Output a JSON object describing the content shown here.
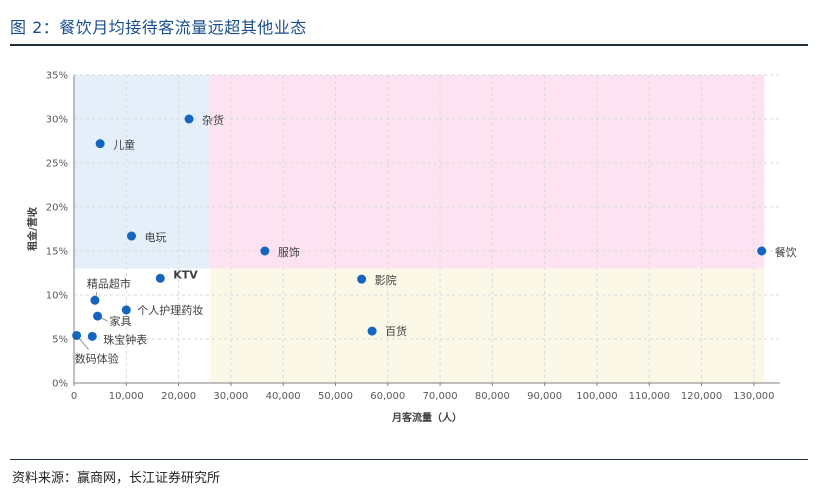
{
  "figure": {
    "title": "图 2：餐饮月均接待客流量远超其他业态",
    "source": "资料来源：赢商网，长江证券研究所"
  },
  "chart_data": {
    "type": "scatter",
    "xlabel": "月客流量（人）",
    "ylabel": "租金/营收",
    "xlim": [
      0,
      135000
    ],
    "ylim": [
      0,
      0.35
    ],
    "x_ticks": [
      0,
      10000,
      20000,
      30000,
      40000,
      50000,
      60000,
      70000,
      80000,
      90000,
      100000,
      110000,
      120000,
      130000
    ],
    "x_tick_labels": [
      "0",
      "10,000",
      "20,000",
      "30,000",
      "40,000",
      "50,000",
      "60,000",
      "70,000",
      "80,000",
      "90,000",
      "100,000",
      "110,000",
      "120,000",
      "130,000"
    ],
    "y_ticks": [
      0,
      0.05,
      0.1,
      0.15,
      0.2,
      0.25,
      0.3,
      0.35
    ],
    "y_tick_labels": [
      "0%",
      "5%",
      "10%",
      "15%",
      "20%",
      "25%",
      "30%",
      "35%"
    ],
    "grid": true,
    "marker_color": "#1565c0",
    "regions": [
      {
        "x": [
          0,
          26000
        ],
        "y": [
          0.13,
          0.35
        ],
        "color": "#e4effa"
      },
      {
        "x": [
          26000,
          132000
        ],
        "y": [
          0.13,
          0.35
        ],
        "color": "#fde3f1"
      },
      {
        "x": [
          26000,
          132000
        ],
        "y": [
          0,
          0.13
        ],
        "color": "#fbf8e8"
      }
    ],
    "points": [
      {
        "label": "杂货",
        "x": 22000,
        "y": 0.3
      },
      {
        "label": "儿童",
        "x": 5000,
        "y": 0.272
      },
      {
        "label": "电玩",
        "x": 11000,
        "y": 0.167
      },
      {
        "label": "服饰",
        "x": 36500,
        "y": 0.15
      },
      {
        "label": "餐饮",
        "x": 131500,
        "y": 0.15
      },
      {
        "label": "KTV",
        "x": 16500,
        "y": 0.119
      },
      {
        "label": "影院",
        "x": 55000,
        "y": 0.118
      },
      {
        "label": "精品超市",
        "x": 4000,
        "y": 0.094
      },
      {
        "label": "个人护理药妆",
        "x": 10000,
        "y": 0.083
      },
      {
        "label": "家具",
        "x": 4500,
        "y": 0.076
      },
      {
        "label": "百货",
        "x": 57000,
        "y": 0.059
      },
      {
        "label": "数码体验",
        "x": 500,
        "y": 0.054
      },
      {
        "label": "珠宝钟表",
        "x": 3500,
        "y": 0.053
      }
    ]
  }
}
